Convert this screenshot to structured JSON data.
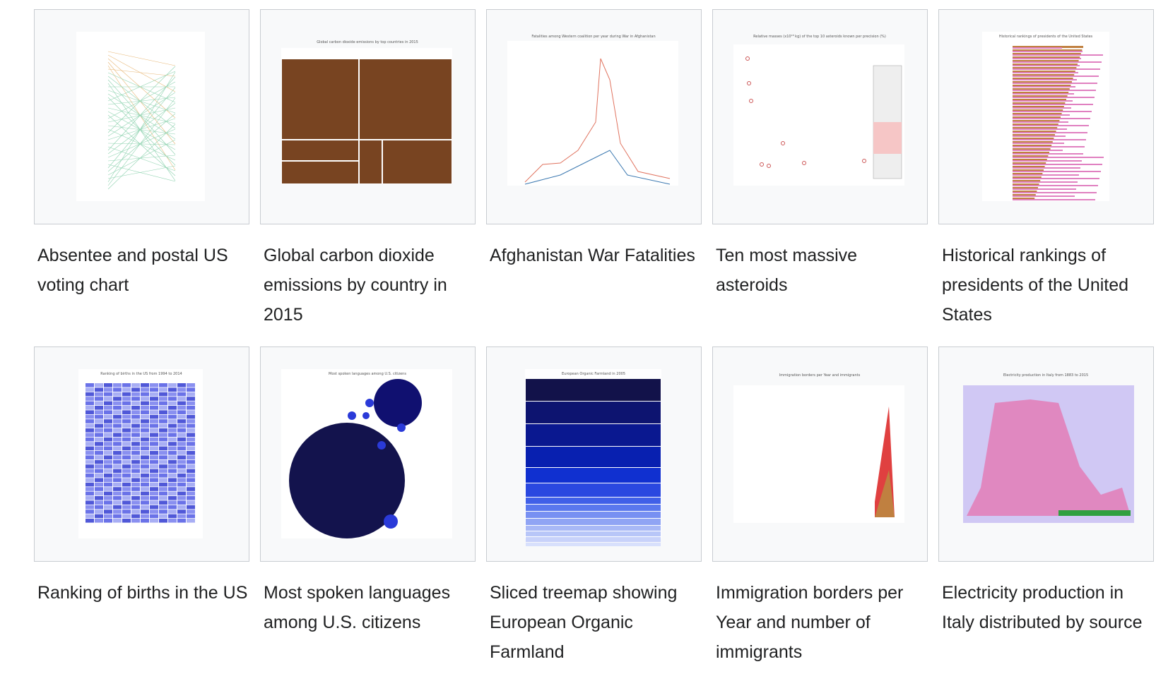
{
  "gallery": {
    "items": [
      {
        "caption": "Absentee and postal US voting chart"
      },
      {
        "caption": "Global carbon dioxide emissions by country in 2015",
        "chart_title": "Global carbon dioxide emissions by top countries in 2015"
      },
      {
        "caption": "Afghanistan War Fatalities",
        "chart_title": "Fatalities among Western coalition per year during War in Afghanistan"
      },
      {
        "caption": "Ten most massive asteroids",
        "chart_title": "Relative masses (x10¹⁸ kg) of the top 10 asteroids known per precision (%)"
      },
      {
        "caption": "Historical rankings of presidents of the United States",
        "chart_title": "Historical rankings of presidents of the United States"
      },
      {
        "caption": "Ranking of births in the US",
        "chart_title": "Ranking of births in the US from 1994 to 2014"
      },
      {
        "caption": "Most spoken languages among U.S. citizens",
        "chart_title": "Most spoken languages among U.S. citizens"
      },
      {
        "caption": "Sliced treemap showing European Organic Farmland",
        "chart_title": "European Organic Farmland in 2005"
      },
      {
        "caption": "Immigration borders per Year and number of immigrants",
        "chart_title": "Immigration borders per Year and immigrants"
      },
      {
        "caption": "Electricity production in Italy distributed by source",
        "chart_title": "Electricity production in Italy from 1883 to 2015"
      }
    ]
  }
}
